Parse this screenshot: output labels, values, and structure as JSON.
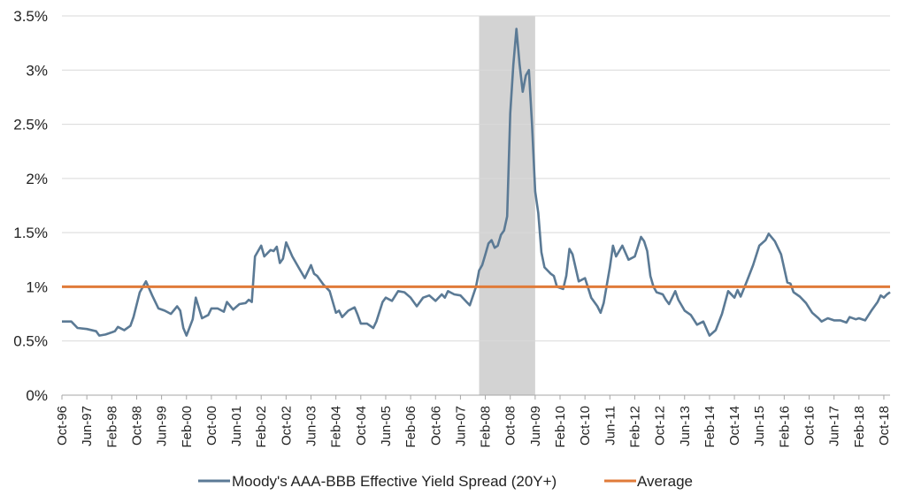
{
  "chart_data": {
    "type": "line",
    "title": "",
    "xlabel": "",
    "ylabel": "",
    "ylim": [
      0,
      3.5
    ],
    "y_ticks": [
      {
        "value": 0,
        "label": "0%"
      },
      {
        "value": 0.5,
        "label": "0.5%"
      },
      {
        "value": 1,
        "label": "1%"
      },
      {
        "value": 1.5,
        "label": "1.5%"
      },
      {
        "value": 2,
        "label": "2%"
      },
      {
        "value": 2.5,
        "label": "2.5%"
      },
      {
        "value": 3,
        "label": "3%"
      },
      {
        "value": 3.5,
        "label": "3.5%"
      }
    ],
    "x_ticks": [
      "Oct-96",
      "Jun-97",
      "Feb-98",
      "Oct-98",
      "Jun-99",
      "Feb-00",
      "Oct-00",
      "Jun-01",
      "Feb-02",
      "Oct-02",
      "Jun-03",
      "Feb-04",
      "Oct-04",
      "Jun-05",
      "Feb-06",
      "Oct-06",
      "Jun-07",
      "Feb-08",
      "Oct-08",
      "Jun-09",
      "Feb-10",
      "Oct-10",
      "Jun-11",
      "Feb-12",
      "Oct-12",
      "Jun-13",
      "Feb-14",
      "Oct-14",
      "Jun-15",
      "Feb-16",
      "Oct-16",
      "Jun-17",
      "Feb-18",
      "Oct-18"
    ],
    "grid": true,
    "legend_position": "bottom",
    "shaded_region": {
      "start": "Dec-07",
      "end": "Jun-09",
      "color": "#d3d3d3"
    },
    "series": [
      {
        "name": "Moody's AAA-BBB Effective Yield Spread (20Y+)",
        "color": "#5b7a95",
        "points": [
          [
            "Oct-96",
            0.68
          ],
          [
            "Jan-97",
            0.68
          ],
          [
            "Mar-97",
            0.62
          ],
          [
            "Jun-97",
            0.61
          ],
          [
            "Sep-97",
            0.59
          ],
          [
            "Oct-97",
            0.55
          ],
          [
            "Dec-97",
            0.56
          ],
          [
            "Mar-98",
            0.59
          ],
          [
            "Apr-98",
            0.63
          ],
          [
            "Jun-98",
            0.6
          ],
          [
            "Aug-98",
            0.64
          ],
          [
            "Sep-98",
            0.72
          ],
          [
            "Nov-98",
            0.95
          ],
          [
            "Jan-99",
            1.05
          ],
          [
            "Mar-99",
            0.92
          ],
          [
            "May-99",
            0.8
          ],
          [
            "Jul-99",
            0.78
          ],
          [
            "Sep-99",
            0.75
          ],
          [
            "Nov-99",
            0.82
          ],
          [
            "Dec-99",
            0.78
          ],
          [
            "Jan-00",
            0.62
          ],
          [
            "Feb-00",
            0.55
          ],
          [
            "Apr-00",
            0.7
          ],
          [
            "May-00",
            0.9
          ],
          [
            "Jul-00",
            0.71
          ],
          [
            "Sep-00",
            0.74
          ],
          [
            "Oct-00",
            0.8
          ],
          [
            "Dec-00",
            0.8
          ],
          [
            "Feb-01",
            0.77
          ],
          [
            "Mar-01",
            0.86
          ],
          [
            "May-01",
            0.79
          ],
          [
            "Jul-01",
            0.84
          ],
          [
            "Sep-01",
            0.85
          ],
          [
            "Oct-01",
            0.88
          ],
          [
            "Nov-01",
            0.86
          ],
          [
            "Dec-01",
            1.28
          ],
          [
            "Feb-02",
            1.38
          ],
          [
            "Mar-02",
            1.28
          ],
          [
            "May-02",
            1.34
          ],
          [
            "Jun-02",
            1.33
          ],
          [
            "Jul-02",
            1.37
          ],
          [
            "Aug-02",
            1.22
          ],
          [
            "Sep-02",
            1.26
          ],
          [
            "Oct-02",
            1.41
          ],
          [
            "Dec-02",
            1.28
          ],
          [
            "Feb-03",
            1.18
          ],
          [
            "Apr-03",
            1.08
          ],
          [
            "Jun-03",
            1.2
          ],
          [
            "Jul-03",
            1.12
          ],
          [
            "Aug-03",
            1.1
          ],
          [
            "Oct-03",
            1.02
          ],
          [
            "Dec-03",
            0.96
          ],
          [
            "Feb-04",
            0.76
          ],
          [
            "Mar-04",
            0.78
          ],
          [
            "Apr-04",
            0.72
          ],
          [
            "Jun-04",
            0.78
          ],
          [
            "Aug-04",
            0.81
          ],
          [
            "Sep-04",
            0.74
          ],
          [
            "Oct-04",
            0.66
          ],
          [
            "Dec-04",
            0.66
          ],
          [
            "Feb-05",
            0.62
          ],
          [
            "Mar-05",
            0.68
          ],
          [
            "May-05",
            0.86
          ],
          [
            "Jun-05",
            0.9
          ],
          [
            "Aug-05",
            0.87
          ],
          [
            "Oct-05",
            0.96
          ],
          [
            "Dec-05",
            0.95
          ],
          [
            "Feb-06",
            0.9
          ],
          [
            "Apr-06",
            0.82
          ],
          [
            "Jun-06",
            0.9
          ],
          [
            "Aug-06",
            0.92
          ],
          [
            "Oct-06",
            0.87
          ],
          [
            "Dec-06",
            0.93
          ],
          [
            "Jan-07",
            0.9
          ],
          [
            "Feb-07",
            0.96
          ],
          [
            "Apr-07",
            0.93
          ],
          [
            "Jun-07",
            0.92
          ],
          [
            "Aug-07",
            0.86
          ],
          [
            "Sep-07",
            0.83
          ],
          [
            "Nov-07",
            1.0
          ],
          [
            "Dec-07",
            1.15
          ],
          [
            "Jan-08",
            1.2
          ],
          [
            "Feb-08",
            1.3
          ],
          [
            "Mar-08",
            1.4
          ],
          [
            "Apr-08",
            1.43
          ],
          [
            "May-08",
            1.36
          ],
          [
            "Jun-08",
            1.38
          ],
          [
            "Jul-08",
            1.48
          ],
          [
            "Aug-08",
            1.52
          ],
          [
            "Sep-08",
            1.65
          ],
          [
            "Oct-08",
            2.6
          ],
          [
            "Nov-08",
            3.05
          ],
          [
            "Dec-08",
            3.38
          ],
          [
            "Jan-09",
            3.05
          ],
          [
            "Feb-09",
            2.8
          ],
          [
            "Mar-09",
            2.95
          ],
          [
            "Apr-09",
            3.0
          ],
          [
            "May-09",
            2.5
          ],
          [
            "Jun-09",
            1.88
          ],
          [
            "Jul-09",
            1.68
          ],
          [
            "Aug-09",
            1.32
          ],
          [
            "Sep-09",
            1.18
          ],
          [
            "Nov-09",
            1.12
          ],
          [
            "Dec-09",
            1.1
          ],
          [
            "Jan-10",
            1.0
          ],
          [
            "Mar-10",
            0.98
          ],
          [
            "Apr-10",
            1.1
          ],
          [
            "May-10",
            1.35
          ],
          [
            "Jun-10",
            1.3
          ],
          [
            "Aug-10",
            1.05
          ],
          [
            "Oct-10",
            1.08
          ],
          [
            "Dec-10",
            0.9
          ],
          [
            "Feb-11",
            0.82
          ],
          [
            "Mar-11",
            0.76
          ],
          [
            "Apr-11",
            0.85
          ],
          [
            "Jun-11",
            1.18
          ],
          [
            "Jul-11",
            1.38
          ],
          [
            "Aug-11",
            1.28
          ],
          [
            "Oct-11",
            1.38
          ],
          [
            "Dec-11",
            1.25
          ],
          [
            "Feb-12",
            1.28
          ],
          [
            "Apr-12",
            1.46
          ],
          [
            "May-12",
            1.42
          ],
          [
            "Jun-12",
            1.33
          ],
          [
            "Jul-12",
            1.1
          ],
          [
            "Aug-12",
            1.0
          ],
          [
            "Sep-12",
            0.95
          ],
          [
            "Nov-12",
            0.93
          ],
          [
            "Dec-12",
            0.88
          ],
          [
            "Jan-13",
            0.84
          ],
          [
            "Mar-13",
            0.96
          ],
          [
            "Apr-13",
            0.88
          ],
          [
            "Jun-13",
            0.78
          ],
          [
            "Aug-13",
            0.74
          ],
          [
            "Oct-13",
            0.65
          ],
          [
            "Dec-13",
            0.68
          ],
          [
            "Feb-14",
            0.55
          ],
          [
            "Apr-14",
            0.6
          ],
          [
            "Jun-14",
            0.75
          ],
          [
            "Aug-14",
            0.96
          ],
          [
            "Oct-14",
            0.9
          ],
          [
            "Nov-14",
            0.97
          ],
          [
            "Dec-14",
            0.91
          ],
          [
            "Feb-15",
            1.05
          ],
          [
            "Apr-15",
            1.2
          ],
          [
            "Jun-15",
            1.38
          ],
          [
            "Aug-15",
            1.43
          ],
          [
            "Sep-15",
            1.49
          ],
          [
            "Nov-15",
            1.42
          ],
          [
            "Jan-16",
            1.3
          ],
          [
            "Mar-16",
            1.04
          ],
          [
            "Apr-16",
            1.03
          ],
          [
            "May-16",
            0.95
          ],
          [
            "Jul-16",
            0.91
          ],
          [
            "Sep-16",
            0.85
          ],
          [
            "Nov-16",
            0.76
          ],
          [
            "Jan-17",
            0.71
          ],
          [
            "Feb-17",
            0.68
          ],
          [
            "Apr-17",
            0.71
          ],
          [
            "Jun-17",
            0.69
          ],
          [
            "Aug-17",
            0.69
          ],
          [
            "Oct-17",
            0.67
          ],
          [
            "Nov-17",
            0.72
          ],
          [
            "Jan-18",
            0.7
          ],
          [
            "Feb-18",
            0.71
          ],
          [
            "Apr-18",
            0.69
          ],
          [
            "Jun-18",
            0.78
          ],
          [
            "Aug-18",
            0.86
          ],
          [
            "Sep-18",
            0.92
          ],
          [
            "Oct-18",
            0.9
          ],
          [
            "Nov-18",
            0.93
          ],
          [
            "Dec-18",
            0.95
          ]
        ]
      },
      {
        "name": "Average",
        "color": "#e07b39",
        "points": [
          [
            "Oct-96",
            1.0
          ],
          [
            "Dec-18",
            1.0
          ]
        ]
      }
    ]
  }
}
